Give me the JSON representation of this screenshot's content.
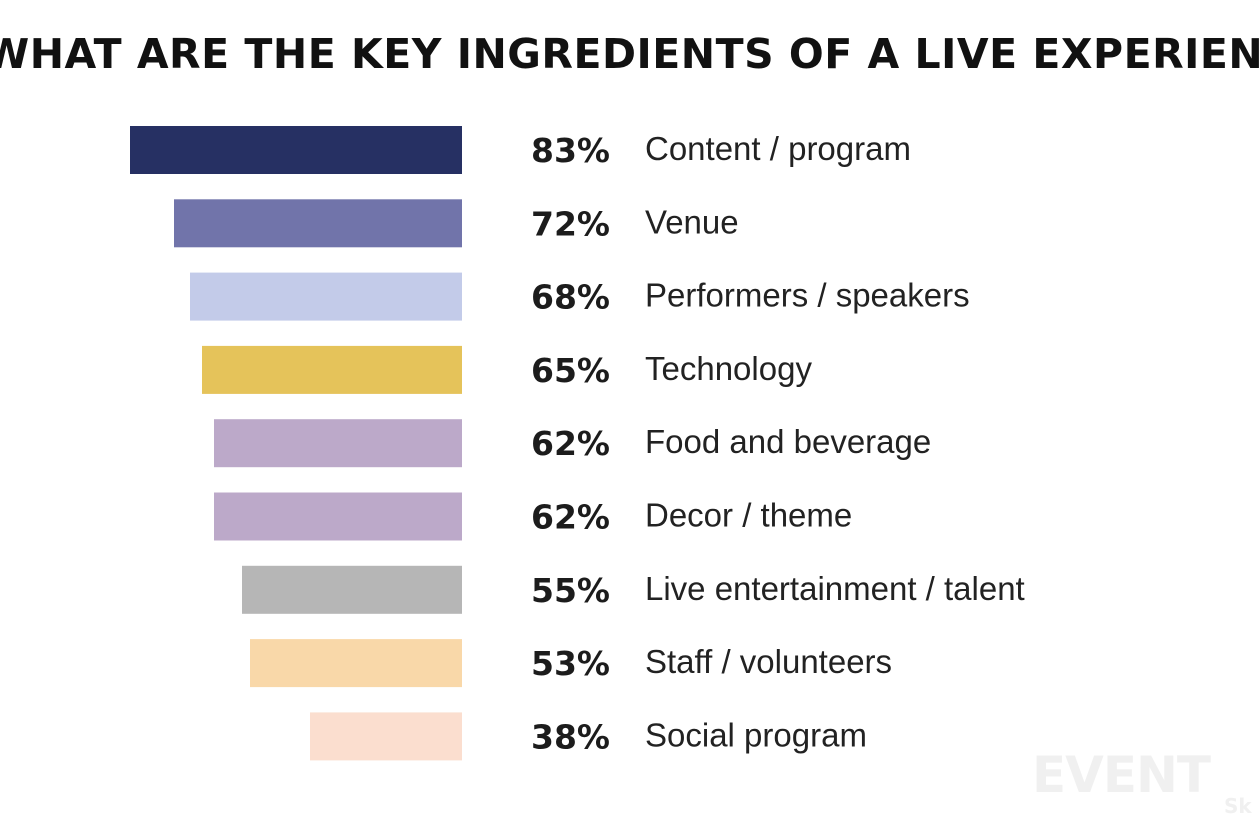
{
  "chart_data": {
    "type": "bar",
    "orientation": "horizontal",
    "title": "WHAT ARE THE KEY INGREDIENTS OF A LIVE EXPERIENCE?",
    "xlabel": "",
    "ylabel": "",
    "unit": "%",
    "xlim": [
      0,
      100
    ],
    "grid": false,
    "categories": [
      "Content / program",
      "Venue",
      "Performers / speakers",
      "Technology",
      "Food and beverage",
      "Decor / theme",
      "Live entertainment / talent",
      "Staff / volunteers",
      "Social program"
    ],
    "values": [
      83,
      72,
      68,
      65,
      62,
      62,
      55,
      53,
      38
    ],
    "labels": [
      "83%",
      "72%",
      "68%",
      "65%",
      "62%",
      "62%",
      "55%",
      "53%",
      "38%"
    ],
    "colors": [
      "#263063",
      "#7174aa",
      "#c3cbe9",
      "#e5c35a",
      "#bca9c9",
      "#bca9c9",
      "#b6b6b6",
      "#f9d8a9",
      "#fbdecf"
    ]
  },
  "watermark": {
    "text": "EVENT",
    "subtext": "Sk"
  }
}
